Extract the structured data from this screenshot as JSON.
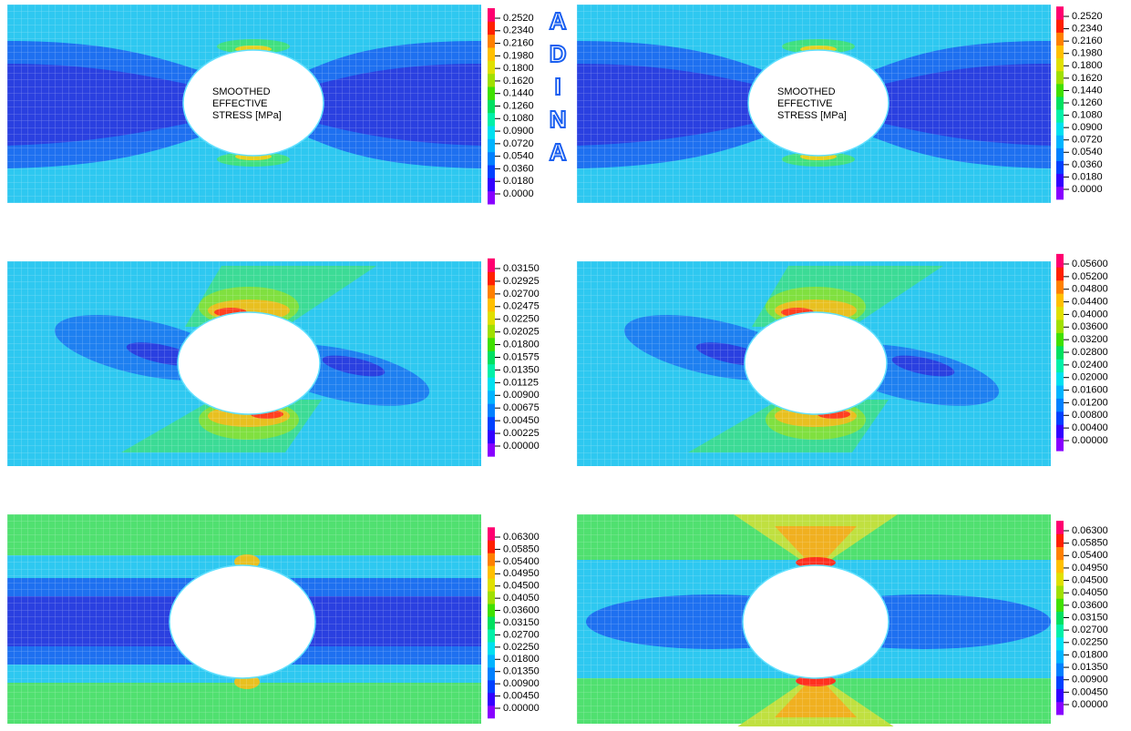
{
  "logo": "ADINA",
  "panels": [
    {
      "label": [
        "SMOOTHED",
        "EFFECTIVE",
        "STRESS [MPa]"
      ],
      "legend": [
        "0.2520",
        "0.2340",
        "0.2160",
        "0.1980",
        "0.1800",
        "0.1620",
        "0.1440",
        "0.1260",
        "0.1080",
        "0.0900",
        "0.0720",
        "0.0540",
        "0.0360",
        "0.0180",
        "0.0000"
      ]
    },
    {
      "label": [
        "SMOOTHED",
        "EFFECTIVE",
        "STRESS [MPa]"
      ],
      "legend": [
        "0.2520",
        "0.2340",
        "0.2160",
        "0.1980",
        "0.1800",
        "0.1620",
        "0.1440",
        "0.1260",
        "0.1080",
        "0.0900",
        "0.0720",
        "0.0540",
        "0.0360",
        "0.0180",
        "0.0000"
      ]
    },
    {
      "legend": [
        "0.03150",
        "0.02925",
        "0.02700",
        "0.02475",
        "0.02250",
        "0.02025",
        "0.01800",
        "0.01575",
        "0.01350",
        "0.01125",
        "0.00900",
        "0.00675",
        "0.00450",
        "0.00225",
        "0.00000"
      ]
    },
    {
      "legend": [
        "0.05600",
        "0.05200",
        "0.04800",
        "0.04400",
        "0.04000",
        "0.03600",
        "0.03200",
        "0.02800",
        "0.02400",
        "0.02000",
        "0.01600",
        "0.01200",
        "0.00800",
        "0.00400",
        "0.00000"
      ]
    },
    {
      "legend": [
        "0.06300",
        "0.05850",
        "0.05400",
        "0.04950",
        "0.04500",
        "0.04050",
        "0.03600",
        "0.03150",
        "0.02700",
        "0.02250",
        "0.01800",
        "0.01350",
        "0.00900",
        "0.00450",
        "0.00000"
      ]
    },
    {
      "legend": [
        "0.06300",
        "0.05850",
        "0.05400",
        "0.04950",
        "0.04500",
        "0.04050",
        "0.03600",
        "0.03150",
        "0.02700",
        "0.02250",
        "0.01800",
        "0.01350",
        "0.00900",
        "0.00450",
        "0.00000"
      ]
    }
  ]
}
